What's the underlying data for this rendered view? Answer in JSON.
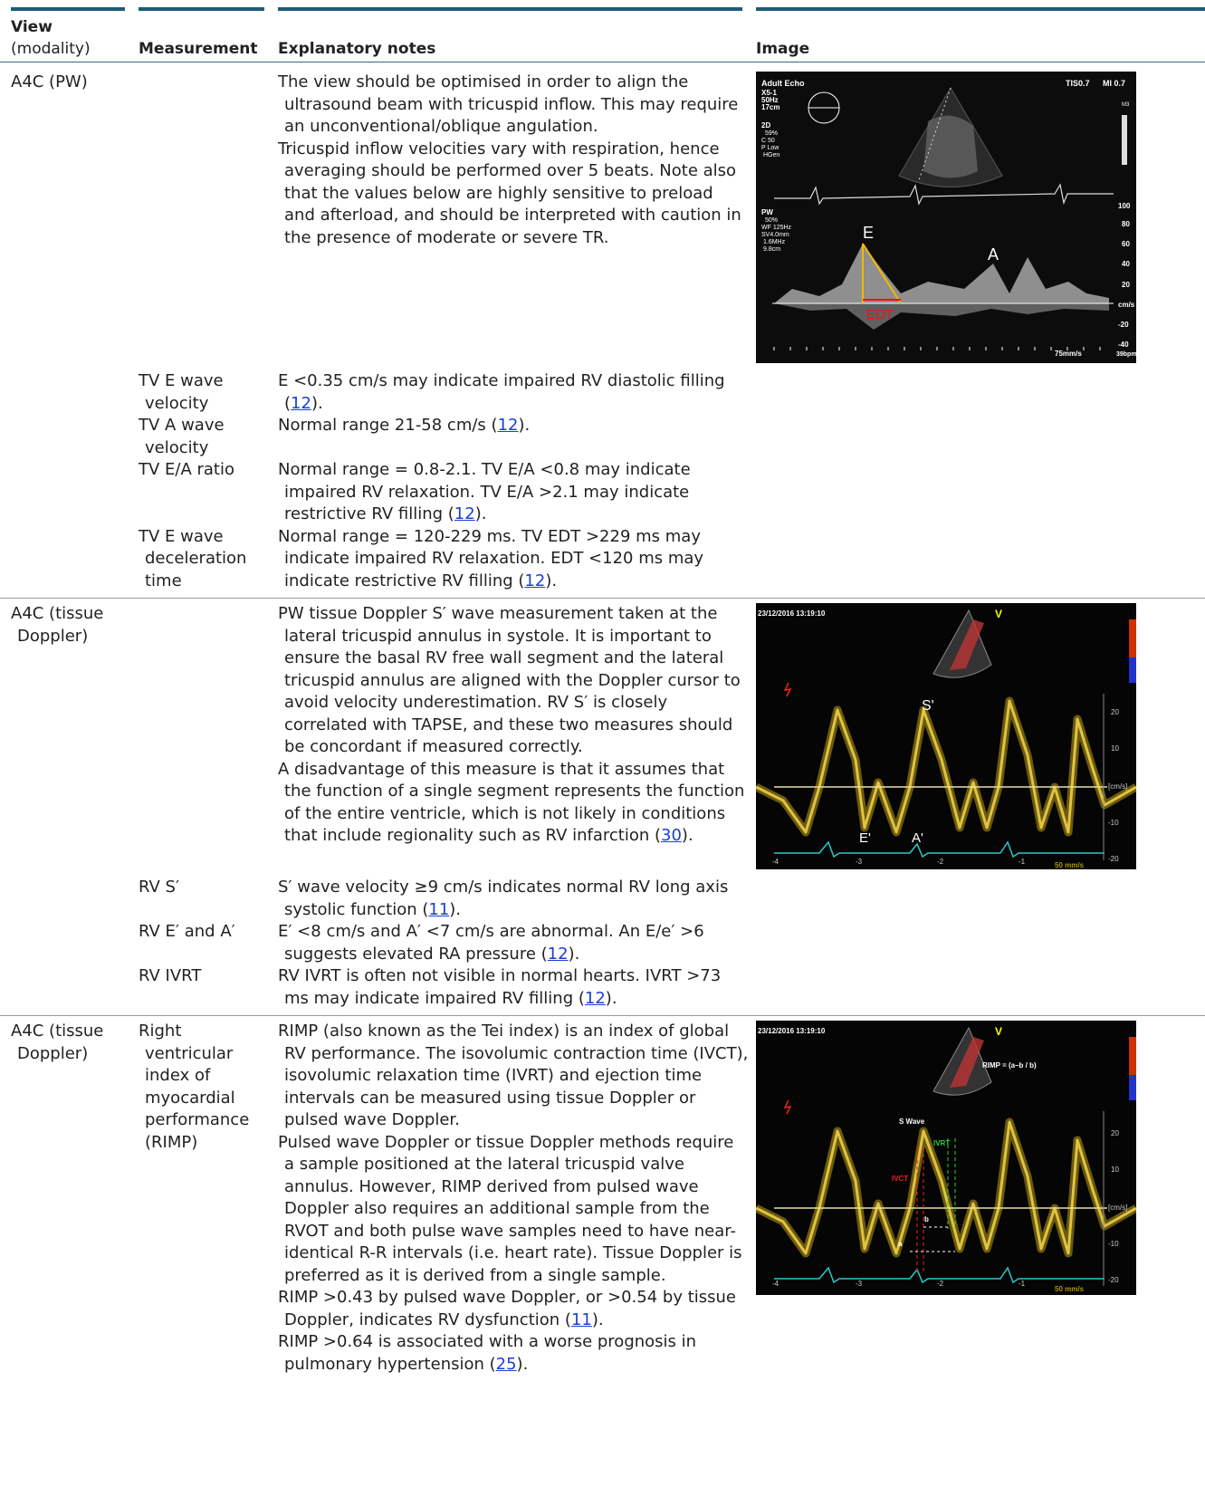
{
  "header": {
    "view": "View",
    "view_sub": "(modality)",
    "measurement": "Measurement",
    "notes": "Explanatory notes",
    "image": "Image"
  },
  "sections": [
    {
      "view": "A4C (PW)",
      "image": {
        "labels": [
          "Adult Echo",
          "X5-1",
          "50Hz",
          "17cm",
          "2D",
          "59%",
          "C 50",
          "P Low",
          "HGen",
          "TIS0.7",
          "MI 0.7",
          "M3",
          "PW",
          "50%",
          "WF 125Hz",
          "SV4.0mm",
          "1.6MHz",
          "9.8cm",
          "E",
          "A",
          "EDT",
          "100",
          "80",
          "60",
          "40",
          "20",
          "cm/s",
          "-20",
          "-40",
          "75mm/s",
          "39bpm"
        ]
      },
      "rows": [
        {
          "notes": [
            {
              "parts": [
                {
                  "text": "The view should be optimised in order to align the ultrasound beam with tricuspid inflow. This may require an unconventional/oblique angulation."
                }
              ]
            },
            {
              "parts": [
                {
                  "text": "Tricuspid inflow velocities vary with respiration, hence averaging should be performed over 5 beats. Note also that the values below are highly sensitive to preload and afterload, and should be interpreted with caution in the presence of moderate or severe TR."
                }
              ]
            }
          ]
        },
        {
          "measurement": "TV E wave velocity",
          "notes": [
            {
              "parts": [
                {
                  "text": "E <0.35 cm/s may indicate impaired RV diastolic filling ("
                },
                {
                  "ref": "12"
                },
                {
                  "text": ")."
                }
              ]
            }
          ]
        },
        {
          "measurement": "TV A wave velocity",
          "notes": [
            {
              "parts": [
                {
                  "text": "Normal range 21-58 cm/s ("
                },
                {
                  "ref": "12"
                },
                {
                  "text": ")."
                }
              ]
            }
          ]
        },
        {
          "measurement": "TV E/A ratio",
          "notes": [
            {
              "parts": [
                {
                  "text": "Normal range = 0.8-2.1. TV E/A <0.8 may indicate impaired RV relaxation. TV E/A >2.1 may indicate restrictive RV filling ("
                },
                {
                  "ref": "12"
                },
                {
                  "text": ")."
                }
              ]
            }
          ]
        },
        {
          "measurement": "TV E wave deceleration time",
          "notes": [
            {
              "parts": [
                {
                  "text": "Normal range = 120-229 ms. TV EDT >229 ms may indicate impaired RV relaxation. EDT <120 ms may indicate restrictive RV filling ("
                },
                {
                  "ref": "12"
                },
                {
                  "text": ")."
                }
              ]
            }
          ]
        }
      ]
    },
    {
      "view": "A4C (tissue Doppler)",
      "image": {
        "labels": [
          "23/12/2016 13:19:10",
          "V",
          "S'",
          "E'",
          "A'",
          "20",
          "10",
          "[cm/s]",
          "-10",
          "-20",
          "-4",
          "-3",
          "-2",
          "-1",
          "50 mm/s"
        ]
      },
      "rows": [
        {
          "notes": [
            {
              "parts": [
                {
                  "text": "PW tissue Doppler S′ wave measurement taken at the lateral tricuspid annulus in systole. It is important to ensure the basal RV free wall segment and the lateral tricuspid annulus are aligned with the Doppler cursor to avoid velocity underestimation. RV S′ is closely correlated with TAPSE, and these two measures should be concordant if measured correctly."
                }
              ]
            },
            {
              "parts": [
                {
                  "text": "A disadvantage of this measure is that it assumes that the function of a single segment represents the function of the entire ventricle, which is not likely in conditions that include regionality such as RV infarction ("
                },
                {
                  "ref": "30"
                },
                {
                  "text": ")."
                }
              ]
            }
          ]
        },
        {
          "measurement": "RV S′",
          "notes": [
            {
              "parts": [
                {
                  "text": "S′ wave velocity ≥9 cm/s indicates normal RV long axis systolic function ("
                },
                {
                  "ref": "11"
                },
                {
                  "text": ")."
                }
              ]
            }
          ]
        },
        {
          "measurement": "RV E′ and A′",
          "notes": [
            {
              "parts": [
                {
                  "text": "E′ <8 cm/s and A′ <7 cm/s are abnormal. An E/e′ >6 suggests elevated RA pressure ("
                },
                {
                  "ref": "12"
                },
                {
                  "text": ")."
                }
              ]
            }
          ]
        },
        {
          "measurement": "RV IVRT",
          "notes": [
            {
              "parts": [
                {
                  "text": "RV IVRT is often not visible in normal hearts. IVRT >73 ms may indicate impaired RV filling ("
                },
                {
                  "ref": "12"
                },
                {
                  "text": ")."
                }
              ]
            }
          ]
        }
      ]
    },
    {
      "view": "A4C (tissue Doppler)",
      "image": {
        "labels": [
          "23/12/2016 13:19:10",
          "V",
          "RIMP = (a–b / b)",
          "S Wave",
          "IVCT",
          "IVRT",
          "b",
          "a",
          "20",
          "10",
          "[cm/s]",
          "-10",
          "-20",
          "-4",
          "-3",
          "-2",
          "-1",
          "50 mm/s"
        ]
      },
      "rows": [
        {
          "measurement": "Right ventricular index of myocardial performance (RIMP)",
          "notes": [
            {
              "parts": [
                {
                  "text": "RIMP (also known as the Tei index) is an index of global RV performance. The isovolumic contraction time (IVCT), isovolumic relaxation time (IVRT) and ejection time intervals can be measured using tissue Doppler or pulsed wave Doppler."
                }
              ]
            },
            {
              "parts": [
                {
                  "text": "Pulsed wave Doppler or tissue Doppler methods require a sample positioned at the lateral tricuspid valve annulus. However, RIMP derived from pulsed wave Doppler also requires an additional sample from the RVOT and both pulse wave samples need to have near-identical R-R intervals (i.e. heart rate). Tissue Doppler is preferred as it is derived from a single sample."
                }
              ]
            },
            {
              "parts": [
                {
                  "text": "RIMP >0.43 by pulsed wave Doppler, or >0.54 by tissue Doppler, indicates RV dysfunction ("
                },
                {
                  "ref": "11"
                },
                {
                  "text": ")."
                }
              ]
            },
            {
              "parts": [
                {
                  "text": "RIMP >0.64 is associated with a worse prognosis in pulmonary hypertension ("
                },
                {
                  "ref": "25"
                },
                {
                  "text": ")."
                }
              ]
            }
          ]
        }
      ]
    }
  ]
}
